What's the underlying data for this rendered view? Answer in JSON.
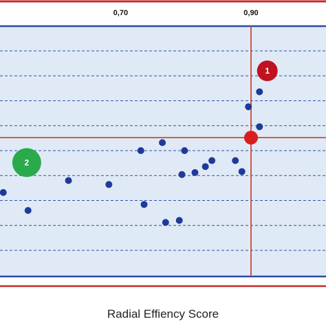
{
  "chart_data": {
    "type": "scatter",
    "xlabel": "Radial Effiency Score",
    "x_ticks": [
      {
        "value": 0.7,
        "label": "0,70"
      },
      {
        "value": 0.9,
        "label": "0,90"
      }
    ],
    "xlim": [
      0.515,
      1.015
    ],
    "ylim": [
      0,
      10
    ],
    "grid": true,
    "reference_lines": {
      "x": 0.9,
      "y": 5.65
    },
    "points": [
      {
        "x": 0.52,
        "y": 2.9
      },
      {
        "x": 0.558,
        "y": 2.0
      },
      {
        "x": 0.62,
        "y": 3.5
      },
      {
        "x": 0.682,
        "y": 3.3
      },
      {
        "x": 0.731,
        "y": 5.0
      },
      {
        "x": 0.736,
        "y": 2.3
      },
      {
        "x": 0.764,
        "y": 5.4
      },
      {
        "x": 0.769,
        "y": 1.4
      },
      {
        "x": 0.79,
        "y": 1.5
      },
      {
        "x": 0.794,
        "y": 3.8
      },
      {
        "x": 0.798,
        "y": 5.0
      },
      {
        "x": 0.814,
        "y": 3.9
      },
      {
        "x": 0.83,
        "y": 4.2
      },
      {
        "x": 0.84,
        "y": 4.5
      },
      {
        "x": 0.876,
        "y": 4.5
      },
      {
        "x": 0.886,
        "y": 3.95
      },
      {
        "x": 0.896,
        "y": 7.2
      },
      {
        "x": 0.913,
        "y": 6.2
      },
      {
        "x": 0.913,
        "y": 7.95
      }
    ],
    "highlight_point": {
      "x": 0.9,
      "y": 5.65,
      "color": "#d81e1e"
    },
    "badges": [
      {
        "label": "1",
        "x": 0.925,
        "y": 9.0,
        "color": "#c1121f"
      },
      {
        "label": "2",
        "x": 0.556,
        "y": 4.4,
        "color": "#2aaa4a"
      }
    ],
    "colors": {
      "background": "#dfeaf6",
      "points": "#1f3a9a",
      "gridlines": "#2d4fa8",
      "reference": "#d0452f",
      "frame_outer": "#c62828",
      "frame_inner": "#2a4aa0"
    }
  }
}
